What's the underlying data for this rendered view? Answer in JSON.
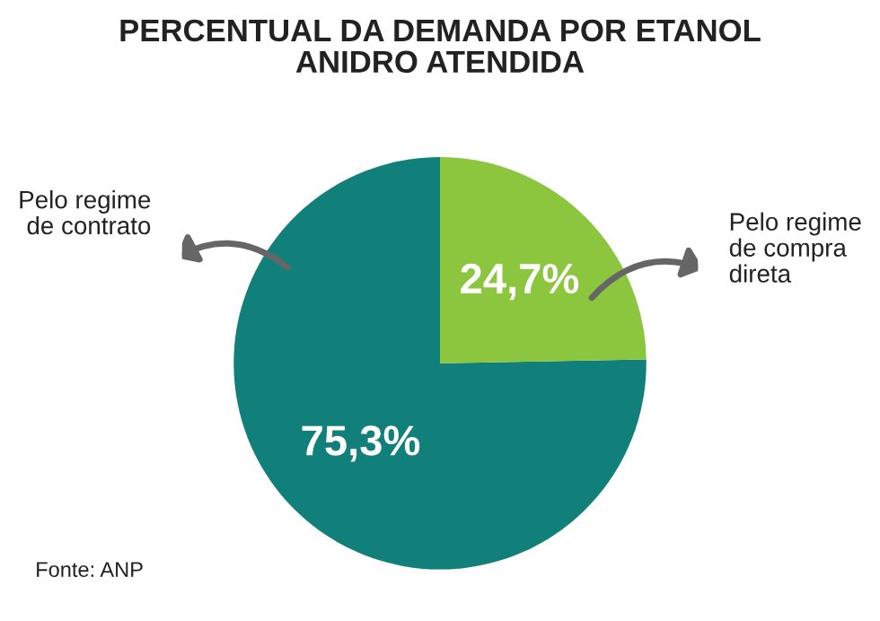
{
  "chart_data": {
    "type": "pie",
    "title": "PERCENTUAL DA DEMANDA POR ETANOL\nANIDRO ATENDIDA",
    "categories": [
      "Pelo regime\nde contrato",
      "Pelo regime\nde compra\ndireta"
    ],
    "values": [
      75.3,
      24.7
    ],
    "colors": [
      "#12807a",
      "#8cc63f"
    ],
    "value_labels": [
      "75,3%",
      "24,7%"
    ],
    "annotations": [
      "Fonte: ANP"
    ]
  }
}
